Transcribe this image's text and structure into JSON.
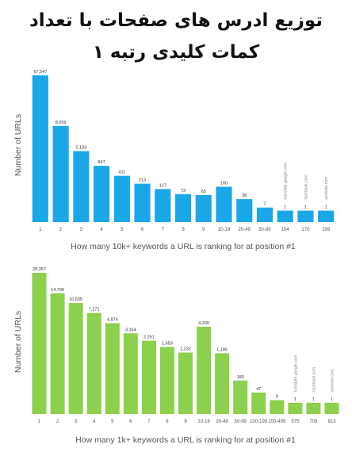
{
  "title": "توزیع ادرس های صفحات با تعداد کمات کلیدی رتبه ۱",
  "title_lines": [
    "توزیع ادرس های صفحات با تعداد",
    "کمات کلیدی رتبه ۱"
  ],
  "chart_data": [
    {
      "type": "bar",
      "color": "#1aa7e8",
      "xlabel": "How many 10k+ keywords a URL is ranking for at position #1",
      "ylabel": "Number of URLs",
      "categories": [
        "1",
        "2",
        "3",
        "4",
        "5",
        "6",
        "7",
        "8",
        "9",
        "10-19",
        "20-49",
        "50-99",
        "104",
        "170",
        "199"
      ],
      "value_labels": [
        "67,547",
        "8,059",
        "2,133",
        "847",
        "411",
        "213",
        "127",
        "73",
        "65",
        "160",
        "38",
        "7",
        "1",
        "1",
        "1"
      ],
      "values": [
        67547,
        8059,
        2133,
        847,
        411,
        213,
        127,
        73,
        65,
        160,
        38,
        7,
        1,
        1,
        1
      ],
      "annotations": [
        "translate.google.com",
        "facebook.com",
        "youtube.com"
      ],
      "annotation_categories": [
        "104",
        "170",
        "199"
      ]
    },
    {
      "type": "bar",
      "color": "#8cd04b",
      "xlabel": "How many 1k+ keywords a URL is ranking for at position #1",
      "ylabel": "Number of URLs",
      "categories": [
        "1",
        "2",
        "3",
        "4",
        "5",
        "6",
        "7",
        "8",
        "9",
        "10-19",
        "20-49",
        "50-99",
        "100-199",
        "200-499",
        "575",
        "709",
        "813"
      ],
      "value_labels": [
        "28,357",
        "14,730",
        "10,535",
        "7,271",
        "4,874",
        "3,164",
        "2,251",
        "1,653",
        "1,232",
        "4,209",
        "1,186",
        "180",
        "47",
        "9",
        "1",
        "1",
        "1"
      ],
      "values": [
        28357,
        14730,
        10535,
        7271,
        4874,
        3164,
        2251,
        1653,
        1232,
        4209,
        1186,
        180,
        47,
        9,
        1,
        1,
        1
      ],
      "annotations": [
        "translate.google.com",
        "facebook.com",
        "youtube.com"
      ],
      "annotation_categories": [
        "575",
        "709",
        "813"
      ]
    }
  ]
}
